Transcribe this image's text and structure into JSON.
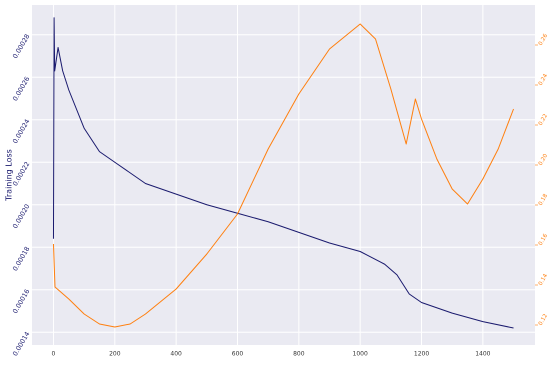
{
  "chart_data": {
    "type": "line",
    "y_label": "Training Loss",
    "grid": true,
    "xlim": [
      -70,
      1570
    ],
    "xticks": [
      0,
      200,
      400,
      600,
      800,
      1000,
      1200,
      1400
    ],
    "ylim": [
      0.000134,
      0.000294
    ],
    "yticks": [
      0.00014,
      0.00016,
      0.00018,
      {
        "value": 0.0002,
        "label": "0.00020"
      },
      0.00022,
      0.00024,
      0.00026,
      0.00028
    ],
    "y2lim": [
      0.11,
      0.28
    ],
    "y2ticks": [
      0.12,
      0.14,
      0.16,
      0.18,
      {
        "value": 0.2,
        "label": "0.20"
      },
      0.22,
      0.24,
      0.26
    ],
    "series": [
      {
        "color": "#1a1a6e",
        "x": [
          0,
          2,
          4,
          15,
          30,
          50,
          100,
          150,
          200,
          300,
          400,
          500,
          600,
          700,
          800,
          900,
          1000,
          1080,
          1120,
          1160,
          1200,
          1300,
          1400,
          1500
        ],
        "values": [
          0.000184,
          0.000288,
          0.000263,
          0.000274,
          0.000263,
          0.000254,
          0.000236,
          0.000225,
          0.00022,
          0.00021,
          0.000205,
          0.0002,
          0.000196,
          0.000192,
          0.000187,
          0.000182,
          0.000178,
          0.000172,
          0.000167,
          0.000158,
          0.000154,
          0.000149,
          0.000145,
          0.000142
        ]
      },
      {
        "color": "#ff7f0e",
        "axis": "y2",
        "x": [
          0,
          5,
          20,
          50,
          100,
          150,
          200,
          250,
          300,
          400,
          500,
          600,
          700,
          800,
          900,
          1000,
          1050,
          1100,
          1150,
          1180,
          1200,
          1250,
          1300,
          1350,
          1400,
          1450,
          1500
        ],
        "values": [
          0.1605,
          0.139,
          0.137,
          0.133,
          0.1255,
          0.1205,
          0.119,
          0.1205,
          0.1255,
          0.138,
          0.1555,
          0.1755,
          0.208,
          0.2355,
          0.258,
          0.2705,
          0.263,
          0.238,
          0.2105,
          0.233,
          0.223,
          0.203,
          0.188,
          0.1805,
          0.193,
          0.208,
          0.228
        ]
      }
    ]
  }
}
